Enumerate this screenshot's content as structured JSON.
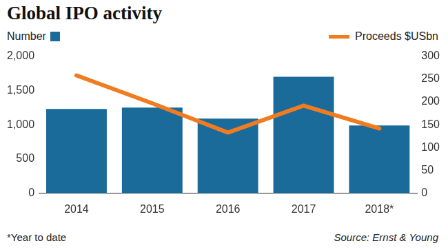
{
  "chart_data": {
    "type": "bar",
    "title": "Global IPO activity",
    "categories": [
      "2014",
      "2015",
      "2016",
      "2017",
      "2018*"
    ],
    "series": [
      {
        "name": "Number",
        "type": "bar",
        "color": "#1a6a9a",
        "values": [
          1230,
          1250,
          1090,
          1700,
          990
        ]
      },
      {
        "name": "Proceeds $USbn",
        "type": "line",
        "color": "#f07c22",
        "axis": "y2",
        "marker": "none",
        "line_style": "solid",
        "values": [
          258,
          197,
          133,
          192,
          142
        ]
      }
    ],
    "ylim": [
      0,
      2000
    ],
    "yticks": [
      0,
      500,
      1000,
      1500,
      2000
    ],
    "y2lim": [
      0,
      300
    ],
    "y2ticks": [
      0,
      50,
      100,
      150,
      200,
      250,
      300
    ],
    "grid": false,
    "legend": "top",
    "footnote": "*Year to date",
    "source": "Source: Ernst & Young"
  }
}
